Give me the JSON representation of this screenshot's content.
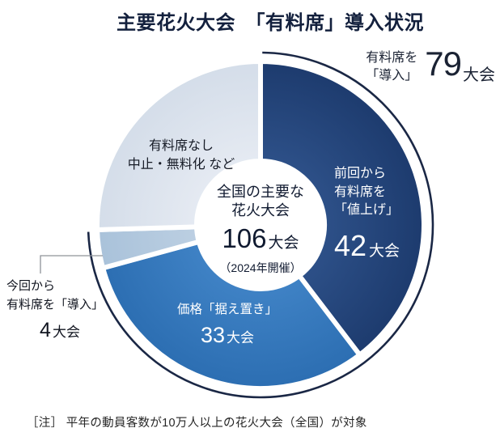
{
  "title": "主要花火大会　「有料席」導入状況",
  "note": "［注］ 平年の動員客数が10万人以上の花火大会（全国）が対象",
  "labels": {
    "introduced": {
      "line1": "有料席を",
      "line2": "「導入」",
      "number": "79",
      "unit": "大会"
    },
    "raised": {
      "line1": "前回から",
      "line2": "有料席を",
      "line3": "「値上げ」",
      "number": "42",
      "unit": "大会"
    },
    "unchanged": {
      "line1": "価格「据え置き」",
      "number": "33",
      "unit": "大会"
    },
    "newly": {
      "line1": "今回から",
      "line2": "有料席を「導入」",
      "number": "4",
      "unit": "大会"
    },
    "none": {
      "line1": "有料席なし",
      "line2": "中止・無料化 など"
    },
    "center": {
      "line1": "全国の主要な",
      "line2": "花火大会",
      "number": "106",
      "unit": "大会",
      "sub": "（2024年開催）"
    }
  },
  "chart_data": {
    "type": "pie",
    "title": "主要花火大会 「有料席」導入状況",
    "total": 106,
    "unit": "大会",
    "center_label": "全国の主要な花火大会 106大会（2024年開催）",
    "start_angle_deg": 0,
    "direction": "clockwise",
    "segments": [
      {
        "key": "raised",
        "label": "前回から有料席を「値上げ」",
        "value": 42,
        "color": "#1d3b6e",
        "color_inner": "#2d5088",
        "text_color": "#ffffff"
      },
      {
        "key": "unchanged",
        "label": "価格「据え置き」",
        "value": 33,
        "color": "#2c6eb2",
        "color_inner": "#3f82c5",
        "text_color": "#ffffff"
      },
      {
        "key": "newly-introduced",
        "label": "今回から有料席を「導入」",
        "value": 4,
        "color": "#a9c2da",
        "color_inner": "#bccfe2",
        "text_color": "#10141f"
      },
      {
        "key": "no-paid-seats",
        "label": "有料席なし 中止・無料化 など",
        "value": 27,
        "color": "#d4dde9",
        "color_inner": "#e5eaf2",
        "text_color": "#161b26"
      }
    ],
    "outer_arc": {
      "label": "有料席を「導入」",
      "value": 79,
      "color": "#1a2745"
    }
  }
}
